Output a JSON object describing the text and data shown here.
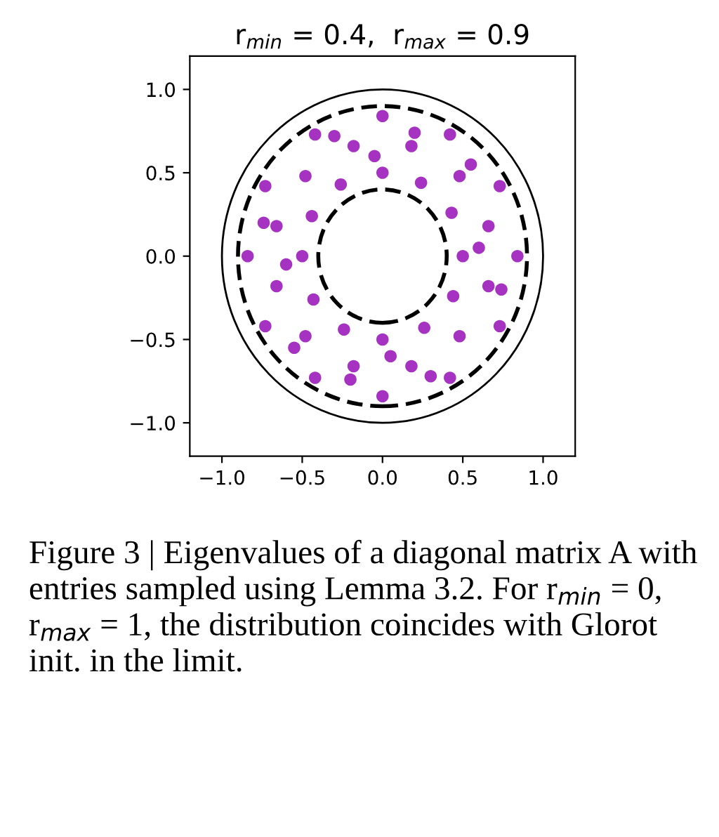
{
  "chart_data": {
    "type": "scatter",
    "title": "r$_{min}$ = 0.4,  r$_{max}$ = 0.9",
    "xlim": [
      -1.2,
      1.2
    ],
    "ylim": [
      -1.2,
      1.2
    ],
    "xticks": [
      {
        "value": -1.0,
        "label": "−1.0"
      },
      {
        "value": -0.5,
        "label": "−0.5"
      },
      {
        "value": 0.0,
        "label": "0.0"
      },
      {
        "value": 0.5,
        "label": "0.5"
      },
      {
        "value": 1.0,
        "label": "1.0"
      }
    ],
    "yticks": [
      {
        "value": -1.0,
        "label": "−1.0"
      },
      {
        "value": -0.5,
        "label": "−0.5"
      },
      {
        "value": 0.0,
        "label": "0.0"
      },
      {
        "value": 0.5,
        "label": "0.5"
      },
      {
        "value": 1.0,
        "label": "1.0"
      }
    ],
    "grid": false,
    "marker": "circle",
    "series": [
      {
        "color": "#a632c2",
        "x": [
          0.5,
          0.43,
          0.24,
          0,
          -0.26,
          -0.44,
          -0.5,
          -0.43,
          -0.24,
          0,
          0.26,
          0.44,
          0.66,
          0.48,
          0.18,
          -0.18,
          -0.48,
          -0.66,
          -0.66,
          -0.48,
          -0.18,
          0.18,
          0.48,
          0.66,
          0.84,
          0.73,
          0.42,
          0,
          -0.42,
          -0.73,
          -0.84,
          -0.73,
          -0.42,
          0,
          0.42,
          0.73,
          0.6,
          -0.05,
          -0.6,
          0.05,
          0.74,
          0.2,
          -0.74,
          -0.2,
          0.55,
          -0.55,
          0.3,
          -0.3
        ],
        "values": [
          0,
          0.26,
          0.44,
          0.5,
          0.43,
          0.24,
          0,
          -0.26,
          -0.44,
          -0.5,
          -0.43,
          -0.24,
          0.18,
          0.48,
          0.66,
          0.66,
          0.48,
          0.18,
          -0.18,
          -0.48,
          -0.66,
          -0.66,
          -0.48,
          -0.18,
          0,
          0.42,
          0.73,
          0.84,
          0.73,
          0.42,
          0,
          -0.42,
          -0.73,
          -0.84,
          -0.73,
          -0.42,
          0.05,
          0.6,
          -0.05,
          -0.6,
          -0.2,
          0.74,
          0.2,
          -0.74,
          0.55,
          -0.55,
          -0.72,
          0.72
        ]
      }
    ],
    "annotations": [
      "Figure 3 | Eigenvalues of a diagonal matrix A with entries sampled using Lemma 3.2. For r$_{min}$ = 0, r$_{max}$ = 1, the distribution coincides with Glorot init. in the limit."
    ]
  }
}
